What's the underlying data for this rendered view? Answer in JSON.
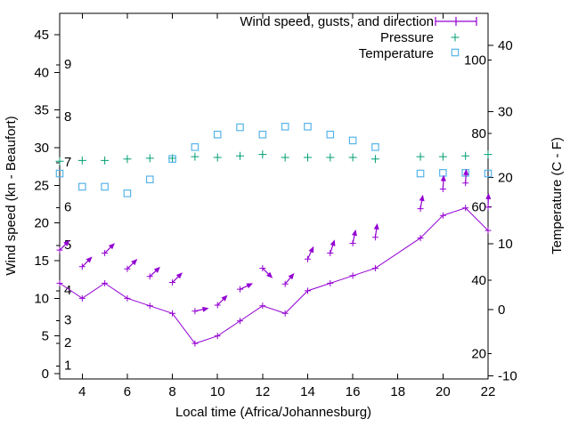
{
  "chart_data": {
    "type": "line",
    "title": "",
    "x": [
      3,
      4,
      5,
      6,
      7,
      8,
      9,
      10,
      11,
      12,
      13,
      14,
      15,
      16,
      17,
      19,
      20,
      21,
      22
    ],
    "x_missing": [
      18
    ],
    "series": [
      {
        "name": "Wind speed, gusts, and direction",
        "style": "line+plus-markers",
        "axis": "left-kn",
        "color": "#9400d3",
        "wind_speed_kn": [
          12,
          10,
          12,
          10,
          9,
          8,
          4,
          5,
          7,
          9,
          8,
          11,
          12,
          13,
          14,
          18,
          21,
          22,
          19
        ],
        "gust_kn": [
          16.4,
          14.2,
          16.0,
          13.9,
          12.9,
          12.1,
          8.3,
          9.1,
          11.2,
          14.0,
          11.9,
          15.2,
          16.0,
          17.3,
          18.1,
          21.9,
          24.5,
          25.3,
          22.1
        ],
        "gust_arrow_bearing_deg": [
          45,
          45,
          45,
          45,
          47,
          45,
          78,
          45,
          65,
          135,
          40,
          25,
          18,
          12,
          8,
          10,
          3,
          3,
          2
        ]
      },
      {
        "name": "Pressure",
        "style": "plus-points",
        "axis": "left-kn-equivalent-position",
        "color": "#009e73",
        "values_plotted_kn": [
          28.2,
          28.3,
          28.3,
          28.5,
          28.6,
          28.6,
          28.8,
          28.7,
          28.9,
          29.1,
          28.7,
          28.7,
          28.7,
          28.7,
          28.5,
          28.8,
          28.8,
          28.9,
          29.1
        ]
      },
      {
        "name": "Temperature",
        "style": "open-square-points",
        "axis": "right-celsius",
        "color": "#56b4e9",
        "values_c": [
          20.6,
          18.6,
          18.6,
          17.6,
          19.7,
          22.8,
          24.6,
          26.5,
          27.6,
          26.5,
          27.7,
          27.7,
          26.5,
          25.6,
          24.6,
          20.6,
          20.7,
          20.7,
          20.6
        ]
      }
    ],
    "axes": {
      "x": {
        "label": "Local time (Africa/Johannesburg)",
        "range": [
          3,
          22
        ],
        "ticks": [
          4,
          6,
          8,
          10,
          12,
          14,
          16,
          18,
          20,
          22
        ]
      },
      "y_left": {
        "label": "Wind speed (kn - Beaufort)",
        "ticks_kn": [
          0,
          5,
          10,
          15,
          20,
          25,
          30,
          35,
          40,
          45
        ],
        "beaufort_marks": [
          {
            "label": "1",
            "kn": 1
          },
          {
            "label": "2",
            "kn": 4
          },
          {
            "label": "3",
            "kn": 7
          },
          {
            "label": "4",
            "kn": 11
          },
          {
            "label": "5",
            "kn": 17
          },
          {
            "label": "6",
            "kn": 22
          },
          {
            "label": "7",
            "kn": 28
          },
          {
            "label": "8",
            "kn": 34
          },
          {
            "label": "9",
            "kn": 41
          }
        ]
      },
      "y_right": {
        "label": "Temperature (C - F)",
        "ticks_c": [
          -10,
          0,
          10,
          20,
          30,
          40
        ],
        "fahrenheit_marks": [
          20,
          40,
          60,
          80,
          100
        ]
      },
      "grid": "off"
    },
    "legend": [
      {
        "label": "Wind speed, gusts, and direction",
        "sample": "errorbar-plus",
        "color": "#9400d3"
      },
      {
        "label": "Pressure",
        "sample": "plus",
        "color": "#009e73"
      },
      {
        "label": "Temperature",
        "sample": "open-square",
        "color": "#56b4e9"
      }
    ],
    "colors": {
      "wind": "#9400d3",
      "pressure": "#009e73",
      "temperature": "#56b4e9",
      "axis": "#000000",
      "background": "#ffffff"
    },
    "legend_position": "top-right-inside"
  }
}
